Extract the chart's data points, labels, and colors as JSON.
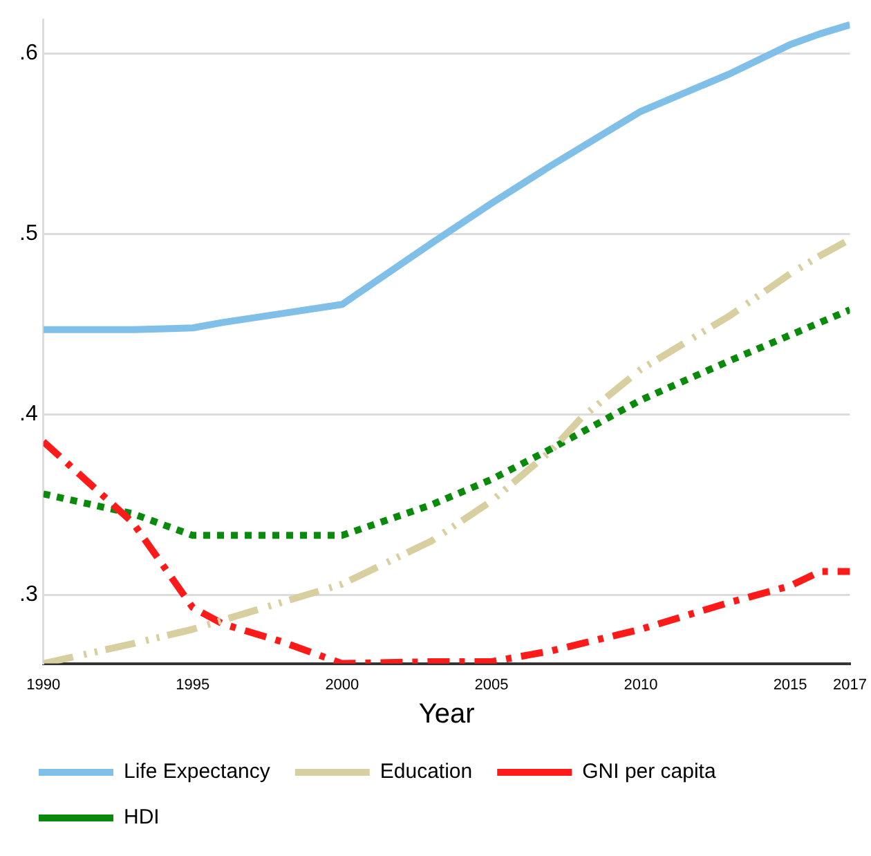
{
  "chart_data": {
    "type": "line",
    "xlabel": "Year",
    "xlim": [
      1990,
      2017
    ],
    "xticks": [
      1990,
      1995,
      2000,
      2005,
      2010,
      2015,
      2017
    ],
    "ylim": [
      0.262,
      0.619
    ],
    "yticks": [
      {
        "value": 0.3,
        "label": ".3"
      },
      {
        "value": 0.4,
        "label": ".4"
      },
      {
        "value": 0.5,
        "label": ".5"
      },
      {
        "value": 0.6,
        "label": ".6"
      }
    ],
    "grid": "y",
    "legend": "bottom",
    "marker": "none",
    "x": [
      1990,
      1993,
      1995,
      1996,
      1998,
      2000,
      2003,
      2005,
      2007,
      2008,
      2010,
      2013,
      2015,
      2016,
      2017
    ],
    "series": [
      {
        "name": "Life Expectancy",
        "color": "#7fbfe8",
        "line_style": "solid",
        "values": [
          0.447,
          0.447,
          0.448,
          0.451,
          0.456,
          0.461,
          0.495,
          0.517,
          0.538,
          0.548,
          0.568,
          0.589,
          0.605,
          0.611,
          0.616
        ]
      },
      {
        "name": "Education",
        "color": "#d8cfa0",
        "line_style": "dashed",
        "values": [
          0.262,
          0.273,
          0.281,
          0.286,
          0.296,
          0.306,
          0.33,
          0.352,
          0.38,
          0.398,
          0.425,
          0.455,
          0.478,
          0.488,
          0.497
        ]
      },
      {
        "name": "GNI per capita",
        "color": "#ff1a1a",
        "line_style": "dashdot",
        "values": [
          0.385,
          0.34,
          0.293,
          0.284,
          0.274,
          0.262,
          0.263,
          0.263,
          0.269,
          0.273,
          0.281,
          0.296,
          0.305,
          0.313,
          0.313
        ]
      },
      {
        "name": "HDI",
        "color": "#0a8a0a",
        "line_style": "dotted",
        "values": [
          0.356,
          0.345,
          0.333,
          0.333,
          0.333,
          0.333,
          0.35,
          0.364,
          0.381,
          0.39,
          0.408,
          0.43,
          0.444,
          0.451,
          0.458
        ]
      }
    ]
  }
}
